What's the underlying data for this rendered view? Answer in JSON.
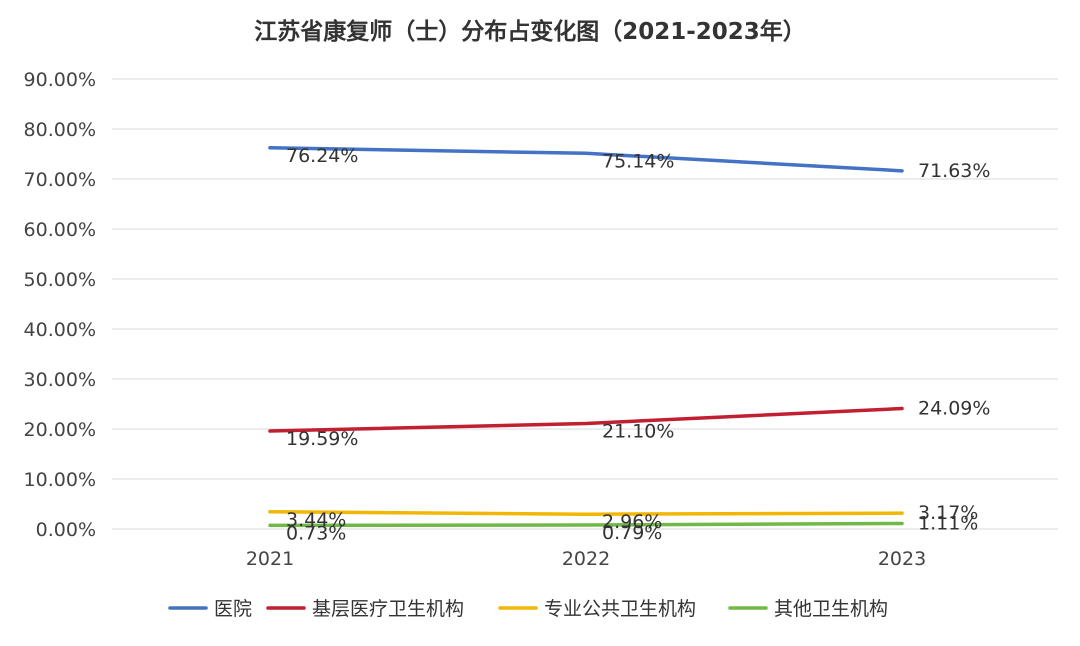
{
  "chart_data": {
    "type": "line",
    "title": "江苏省康复师（士）分布占变化图（2021-2023年）",
    "categories": [
      "2021",
      "2022",
      "2023"
    ],
    "ylim": [
      0,
      90
    ],
    "yticks": [
      {
        "value": 0,
        "label": "0.00%"
      },
      {
        "value": 10,
        "label": "10.00%"
      },
      {
        "value": 20,
        "label": "20.00%"
      },
      {
        "value": 30,
        "label": "30.00%"
      },
      {
        "value": 40,
        "label": "40.00%"
      },
      {
        "value": 50,
        "label": "50.00%"
      },
      {
        "value": 60,
        "label": "60.00%"
      },
      {
        "value": 70,
        "label": "70.00%"
      },
      {
        "value": 80,
        "label": "80.00%"
      },
      {
        "value": 90,
        "label": "90.00%"
      }
    ],
    "grid": true,
    "legend_position": "bottom",
    "series": [
      {
        "name": "医院",
        "color": "#4472C4",
        "values": [
          76.24,
          75.14,
          71.63
        ],
        "labels": [
          "76.24%",
          "75.14%",
          "71.63%"
        ]
      },
      {
        "name": "基层医疗卫生机构",
        "color": "#C0202F",
        "values": [
          19.59,
          21.1,
          24.09
        ],
        "labels": [
          "19.59%",
          "21.10%",
          "24.09%"
        ]
      },
      {
        "name": "专业公共卫生机构",
        "color": "#F2B705",
        "values": [
          3.44,
          2.96,
          3.17
        ],
        "labels": [
          "3.44%",
          "2.96%",
          "3.17%"
        ]
      },
      {
        "name": "其他卫生机构",
        "color": "#70B847",
        "values": [
          0.73,
          0.79,
          1.11
        ],
        "labels": [
          "0.73%",
          "0.79%",
          "1.11%"
        ]
      }
    ]
  }
}
